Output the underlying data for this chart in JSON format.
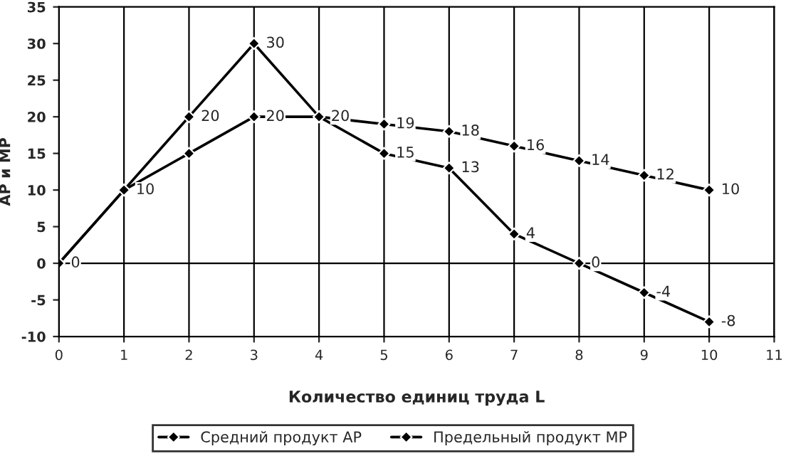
{
  "chart_data": {
    "type": "line",
    "xlabel": "Количество единиц труда L",
    "ylabel": "AP и MP",
    "x": [
      0,
      1,
      2,
      3,
      4,
      5,
      6,
      7,
      8,
      9,
      10
    ],
    "series": [
      {
        "name": "Средний продукт AP",
        "color": "#000000",
        "values": [
          0,
          10,
          15,
          20,
          20,
          19,
          18,
          16,
          14,
          12,
          10
        ],
        "value_labels": [
          null,
          null,
          null,
          "20",
          "20",
          "19",
          "18",
          "16",
          "14",
          "12",
          "10"
        ]
      },
      {
        "name": "Предельный продукт MP",
        "color": "#000000",
        "values": [
          0,
          10,
          20,
          30,
          20,
          15,
          13,
          4,
          0,
          -4,
          -8
        ],
        "value_labels": [
          "0",
          "10",
          "20",
          "30",
          null,
          "15",
          "13",
          "4",
          "0",
          "-4",
          "-8"
        ]
      }
    ],
    "xlim": [
      0,
      11
    ],
    "xticks": [
      0,
      1,
      2,
      3,
      4,
      5,
      6,
      7,
      8,
      9,
      10,
      11
    ],
    "ylim": [
      -10,
      35
    ],
    "yticks": [
      -10,
      -5,
      0,
      5,
      10,
      15,
      20,
      25,
      30,
      35
    ],
    "grid": "x",
    "ref_lines": [
      {
        "axis": "y",
        "value": 0
      }
    ],
    "legend": "bottom",
    "marker": "diamond",
    "line_style": "solid"
  }
}
